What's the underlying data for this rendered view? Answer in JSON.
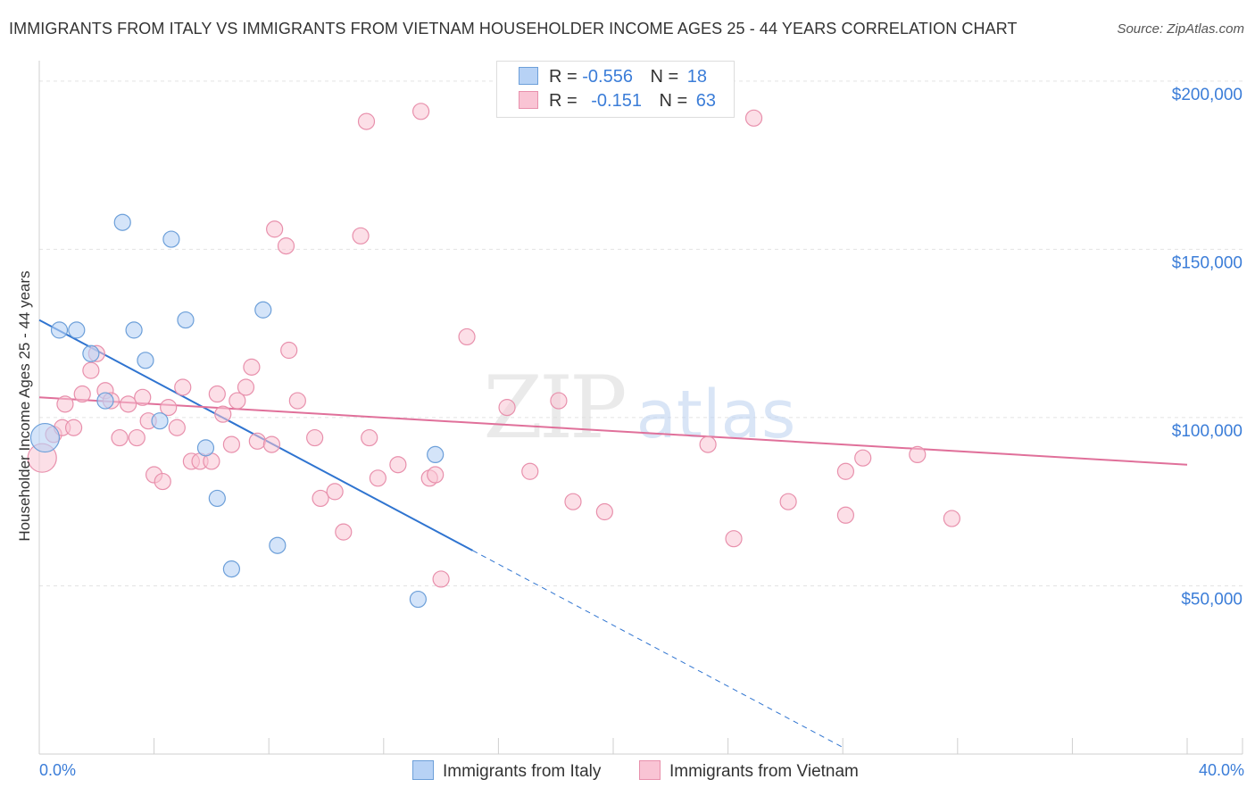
{
  "title": "IMMIGRANTS FROM ITALY VS IMMIGRANTS FROM VIETNAM HOUSEHOLDER INCOME AGES 25 - 44 YEARS CORRELATION CHART",
  "source": "Source: ZipAtlas.com",
  "watermark": {
    "zip": "ZIP",
    "atlas": "atlas"
  },
  "legend": {
    "italy": {
      "r_label": "R =",
      "r_value": "-0.556",
      "n_label": "N =",
      "n_value": "18"
    },
    "vietnam": {
      "r_label": "R =",
      "r_value": "-0.151",
      "n_label": "N =",
      "n_value": "63"
    }
  },
  "bottom_legend": {
    "italy": "Immigrants from Italy",
    "vietnam": "Immigrants from Vietnam"
  },
  "colors": {
    "italy_fill": "#b7d2f5",
    "italy_stroke": "#6c9fd9",
    "italy_line": "#2f74d0",
    "vietnam_fill": "#f9c4d4",
    "vietnam_stroke": "#e890ac",
    "vietnam_line": "#e0709a",
    "tick_text": "#3b7dd8"
  },
  "chart_data": {
    "type": "scatter",
    "title": "IMMIGRANTS FROM ITALY VS IMMIGRANTS FROM VIETNAM HOUSEHOLDER INCOME AGES 25 - 44 YEARS CORRELATION CHART",
    "xlabel": "",
    "ylabel": "Householder Income Ages 25 - 44 years",
    "xlim": [
      0,
      40
    ],
    "ylim": [
      0,
      205000
    ],
    "x_tick_labels": [
      "0.0%",
      "40.0%"
    ],
    "y_ticks": [
      50000,
      100000,
      150000,
      200000
    ],
    "y_tick_labels": [
      "$50,000",
      "$100,000",
      "$150,000",
      "$200,000"
    ],
    "series": [
      {
        "name": "Immigrants from Italy",
        "points": [
          [
            0.2,
            94000
          ],
          [
            0.7,
            126000
          ],
          [
            1.3,
            126000
          ],
          [
            1.8,
            119000
          ],
          [
            2.3,
            105000
          ],
          [
            2.9,
            158000
          ],
          [
            3.3,
            126000
          ],
          [
            3.7,
            117000
          ],
          [
            4.2,
            99000
          ],
          [
            4.6,
            153000
          ],
          [
            5.1,
            129000
          ],
          [
            5.8,
            91000
          ],
          [
            6.2,
            76000
          ],
          [
            6.7,
            55000
          ],
          [
            7.8,
            132000
          ],
          [
            8.3,
            62000
          ],
          [
            13.2,
            46000
          ],
          [
            13.8,
            89000
          ]
        ],
        "trend": {
          "x0": 0,
          "y0": 129000,
          "x1": 15.1,
          "y1": 60500,
          "dash_to_x": 28.0,
          "dash_to_y": 2000
        }
      },
      {
        "name": "Immigrants from Vietnam",
        "points": [
          [
            0.1,
            88000
          ],
          [
            0.5,
            95000
          ],
          [
            0.8,
            97000
          ],
          [
            0.9,
            104000
          ],
          [
            1.2,
            97000
          ],
          [
            1.5,
            107000
          ],
          [
            1.8,
            114000
          ],
          [
            2.0,
            119000
          ],
          [
            2.3,
            108000
          ],
          [
            2.5,
            105000
          ],
          [
            2.8,
            94000
          ],
          [
            3.1,
            104000
          ],
          [
            3.4,
            94000
          ],
          [
            3.6,
            106000
          ],
          [
            3.8,
            99000
          ],
          [
            4.0,
            83000
          ],
          [
            4.3,
            81000
          ],
          [
            4.5,
            103000
          ],
          [
            4.8,
            97000
          ],
          [
            5.0,
            109000
          ],
          [
            5.3,
            87000
          ],
          [
            5.6,
            87000
          ],
          [
            6.0,
            87000
          ],
          [
            6.2,
            107000
          ],
          [
            6.4,
            101000
          ],
          [
            6.7,
            92000
          ],
          [
            6.9,
            105000
          ],
          [
            7.2,
            109000
          ],
          [
            7.4,
            115000
          ],
          [
            7.6,
            93000
          ],
          [
            8.1,
            92000
          ],
          [
            8.2,
            156000
          ],
          [
            8.6,
            151000
          ],
          [
            8.7,
            120000
          ],
          [
            9.0,
            105000
          ],
          [
            9.6,
            94000
          ],
          [
            9.8,
            76000
          ],
          [
            10.3,
            78000
          ],
          [
            10.6,
            66000
          ],
          [
            11.2,
            154000
          ],
          [
            11.4,
            188000
          ],
          [
            11.5,
            94000
          ],
          [
            11.8,
            82000
          ],
          [
            12.5,
            86000
          ],
          [
            13.3,
            191000
          ],
          [
            13.6,
            82000
          ],
          [
            13.8,
            83000
          ],
          [
            14.0,
            52000
          ],
          [
            14.9,
            124000
          ],
          [
            16.3,
            103000
          ],
          [
            17.1,
            84000
          ],
          [
            18.1,
            105000
          ],
          [
            18.6,
            75000
          ],
          [
            19.7,
            72000
          ],
          [
            23.3,
            92000
          ],
          [
            24.2,
            64000
          ],
          [
            24.9,
            189000
          ],
          [
            26.1,
            75000
          ],
          [
            28.1,
            84000
          ],
          [
            28.1,
            71000
          ],
          [
            28.7,
            88000
          ],
          [
            30.6,
            89000
          ],
          [
            31.8,
            70000
          ]
        ],
        "trend": {
          "x0": 0,
          "y0": 106000,
          "x1": 40,
          "y1": 86000
        }
      }
    ]
  }
}
